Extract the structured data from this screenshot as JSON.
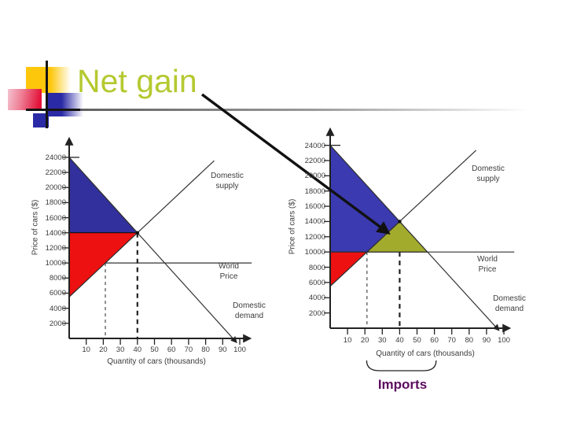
{
  "slide": {
    "title": "Net gain"
  },
  "colors": {
    "title": "#b5c930",
    "imports": "#5c0b5e",
    "axis_text": "#3c3c3c",
    "consumer_surplus_left": "#32309c",
    "consumer_surplus_right": "#3b3ab0",
    "producer_surplus": "#ee1111",
    "net_gain": "#a2ab2c"
  },
  "chart_data": [
    {
      "type": "area",
      "position": "left",
      "ylabel": "Price of cars ($)",
      "xlabel": "Quantity of cars (thousands)",
      "y_ticks": [
        2000,
        4000,
        6000,
        8000,
        10000,
        12000,
        14000,
        16000,
        18000,
        20000,
        22000,
        24000
      ],
      "x_ticks": [
        10,
        20,
        30,
        40,
        50,
        60,
        70,
        80,
        90,
        100
      ],
      "xlim": [
        0,
        108
      ],
      "ylim": [
        0,
        26000
      ],
      "equilibrium": {
        "quantity_thousands": 40,
        "price": 14000
      },
      "world_price": 10000,
      "lines": [
        {
          "name": "domestic-supply",
          "label": "Domestic supply",
          "points": [
            [
              0,
              5500
            ],
            [
              85,
              23560
            ]
          ]
        },
        {
          "name": "domestic-demand",
          "label": "Domestic demand",
          "points": [
            [
              0,
              24000
            ],
            [
              98,
              -500
            ]
          ],
          "arrow_end": true
        },
        {
          "name": "world-price",
          "label": "World Price",
          "points": [
            [
              21.2,
              10000
            ],
            [
              107,
              10000
            ]
          ]
        }
      ],
      "dashed_guides": [
        {
          "x": 21.2,
          "from_price": 10000
        },
        {
          "x": 40,
          "from_price": 14000,
          "bold": true
        }
      ],
      "regions": [
        {
          "name": "consumer-surplus",
          "color_key": "consumer_surplus_left",
          "points": [
            [
              0,
              24000
            ],
            [
              40,
              14000
            ],
            [
              0,
              14000
            ]
          ]
        },
        {
          "name": "producer-surplus",
          "color_key": "producer_surplus",
          "points": [
            [
              0,
              14000
            ],
            [
              40,
              14000
            ],
            [
              0,
              5500
            ]
          ]
        }
      ]
    },
    {
      "type": "area",
      "position": "right",
      "ylabel": "Price of cars ($)",
      "xlabel": "Quantity of cars (thousands)",
      "y_ticks": [
        2000,
        4000,
        6000,
        8000,
        10000,
        12000,
        14000,
        16000,
        18000,
        20000,
        22000,
        24000
      ],
      "x_ticks": [
        10,
        20,
        30,
        40,
        50,
        60,
        70,
        80,
        90,
        100
      ],
      "xlim": [
        0,
        108
      ],
      "ylim": [
        0,
        26000
      ],
      "equilibrium": {
        "quantity_thousands": 40,
        "price": 14000
      },
      "world_price": 10000,
      "imports_label": "Imports",
      "imports_span_x": [
        21,
        61
      ],
      "lines": [
        {
          "name": "domestic-supply",
          "label": "Domestic supply",
          "points": [
            [
              0,
              5500
            ],
            [
              84,
              23350
            ]
          ]
        },
        {
          "name": "domestic-demand",
          "label": "Domestic demand",
          "points": [
            [
              0,
              24000
            ],
            [
              97,
              -250
            ]
          ],
          "arrow_end": true
        },
        {
          "name": "world-price",
          "label": "World Price",
          "points": [
            [
              0,
              10000
            ],
            [
              106,
              10000
            ]
          ]
        }
      ],
      "dashed_guides": [
        {
          "x": 21.2,
          "from_price": 10000
        },
        {
          "x": 40,
          "from_price": 10000,
          "bold": true
        }
      ],
      "regions": [
        {
          "name": "consumer-surplus",
          "color_key": "consumer_surplus_right",
          "points": [
            [
              0,
              24000
            ],
            [
              40,
              14000
            ],
            [
              21.2,
              10000
            ],
            [
              0,
              10000
            ]
          ]
        },
        {
          "name": "producer-surplus",
          "color_key": "producer_surplus",
          "points": [
            [
              0,
              10000
            ],
            [
              21.2,
              10000
            ],
            [
              0,
              5500
            ]
          ]
        },
        {
          "name": "net-gain",
          "color_key": "net_gain",
          "points": [
            [
              21.2,
              10000
            ],
            [
              40,
              14000
            ],
            [
              56,
              10000
            ]
          ]
        }
      ]
    }
  ]
}
